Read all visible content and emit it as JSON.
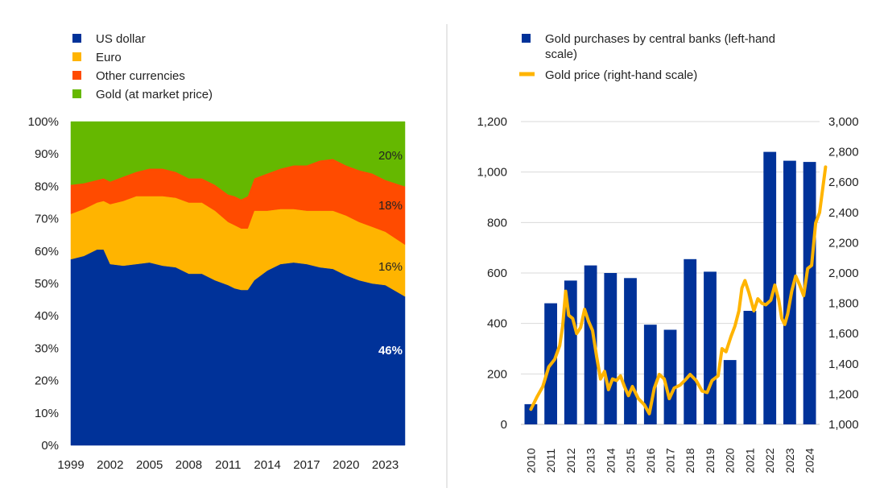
{
  "chart_data": [
    {
      "type": "area",
      "stacked": true,
      "legend_position": "top-left",
      "grid": false,
      "ylim": [
        0,
        100
      ],
      "y_unit": "%",
      "y_ticks": [
        "0%",
        "10%",
        "20%",
        "30%",
        "40%",
        "50%",
        "60%",
        "70%",
        "80%",
        "90%",
        "100%"
      ],
      "x_ticks": [
        "1999",
        "2002",
        "2005",
        "2008",
        "2011",
        "2014",
        "2017",
        "2020",
        "2023"
      ],
      "x": [
        1999.0,
        2000.0,
        2001.0,
        2001.5,
        2002.0,
        2003.0,
        2004.0,
        2005.0,
        2006.0,
        2007.0,
        2008.0,
        2009.0,
        2010.0,
        2011.0,
        2011.5,
        2012.0,
        2012.5,
        2013.0,
        2014.0,
        2015.0,
        2016.0,
        2017.0,
        2018.0,
        2019.0,
        2020.0,
        2021.0,
        2022.0,
        2023.0,
        2024.5
      ],
      "series": [
        {
          "name": "US dollar",
          "color": "#003299",
          "values": [
            57.5,
            58.5,
            60.5,
            60.5,
            56,
            55.5,
            56,
            56.5,
            55.5,
            55,
            53,
            53,
            51,
            49.5,
            48.5,
            48,
            48,
            51,
            54,
            56,
            56.5,
            56,
            55,
            54.5,
            52.5,
            51,
            50,
            49.5,
            46
          ]
        },
        {
          "name": "Euro",
          "color": "#FFB400",
          "values": [
            14,
            14.5,
            14.5,
            15,
            18.5,
            20,
            21,
            20.5,
            21.5,
            21.5,
            22,
            22,
            21.5,
            19.5,
            19.5,
            19,
            19,
            21.5,
            18.5,
            17,
            16.5,
            16.5,
            17.5,
            18,
            18.5,
            18,
            17.5,
            16.5,
            16
          ]
        },
        {
          "name": "Other currencies",
          "color": "#FF4B00",
          "values": [
            9,
            8,
            7,
            7,
            7,
            7.5,
            7.5,
            8.5,
            8.5,
            8,
            7.5,
            7.5,
            8,
            8.5,
            9,
            9,
            10,
            10,
            11.5,
            12.5,
            13.5,
            14,
            15.5,
            16,
            15.5,
            16,
            16.5,
            16,
            18
          ]
        },
        {
          "name": "Gold (at market price)",
          "color": "#65B800",
          "values": [
            19.5,
            19,
            18,
            17.5,
            18.5,
            17,
            15.5,
            14.5,
            14.5,
            15.5,
            17.5,
            17.5,
            19.5,
            22.5,
            23,
            24,
            23,
            17.5,
            16,
            14.5,
            13.5,
            13.5,
            12,
            11.5,
            13.5,
            15,
            16,
            18,
            20
          ]
        }
      ],
      "data_labels": [
        "46%",
        "16%",
        "18%",
        "20%"
      ]
    },
    {
      "type": "bar+line",
      "legend_position": "top",
      "grid": true,
      "categories": [
        "2010",
        "2011",
        "2012",
        "2013",
        "2014",
        "2015",
        "2016",
        "2017",
        "2018",
        "2019",
        "2020",
        "2021",
        "2022",
        "2023",
        "2024"
      ],
      "left_axis": {
        "ylim": [
          0,
          1200
        ],
        "ticks": [
          "0",
          "200",
          "400",
          "600",
          "800",
          "1,000",
          "1,200"
        ]
      },
      "right_axis": {
        "ylim": [
          1000,
          3000
        ],
        "ticks": [
          "1,000",
          "1,200",
          "1,400",
          "1,600",
          "1,800",
          "2,000",
          "2,200",
          "2,400",
          "2,600",
          "2,800",
          "3,000"
        ]
      },
      "series": [
        {
          "name": "Gold purchases by central banks (left-hand scale)",
          "type": "bar",
          "axis": "left",
          "color": "#003299",
          "values": [
            80,
            480,
            570,
            630,
            600,
            580,
            395,
            375,
            655,
            605,
            255,
            450,
            1080,
            1045,
            1040
          ]
        },
        {
          "name": "Gold price (right-hand scale)",
          "type": "line",
          "axis": "right",
          "color": "#FFB400",
          "x": [
            2010.0,
            2010.3,
            2010.6,
            2010.9,
            2011.2,
            2011.45,
            2011.6,
            2011.75,
            2011.9,
            2012.1,
            2012.3,
            2012.5,
            2012.7,
            2012.9,
            2013.1,
            2013.3,
            2013.5,
            2013.7,
            2013.9,
            2014.1,
            2014.3,
            2014.5,
            2014.7,
            2014.9,
            2015.1,
            2015.4,
            2015.7,
            2015.95,
            2016.2,
            2016.45,
            2016.7,
            2016.95,
            2017.2,
            2017.5,
            2017.8,
            2018.0,
            2018.3,
            2018.6,
            2018.85,
            2019.1,
            2019.4,
            2019.6,
            2019.8,
            2020.05,
            2020.25,
            2020.45,
            2020.6,
            2020.75,
            2020.95,
            2021.2,
            2021.4,
            2021.6,
            2021.8,
            2022.05,
            2022.25,
            2022.45,
            2022.6,
            2022.75,
            2022.9,
            2023.1,
            2023.3,
            2023.5,
            2023.7,
            2023.9,
            2024.1,
            2024.3,
            2024.5,
            2024.65,
            2024.8
          ],
          "values": [
            1100,
            1180,
            1250,
            1380,
            1430,
            1520,
            1650,
            1880,
            1720,
            1700,
            1600,
            1640,
            1760,
            1680,
            1620,
            1450,
            1300,
            1350,
            1230,
            1300,
            1290,
            1320,
            1250,
            1190,
            1250,
            1170,
            1130,
            1070,
            1240,
            1330,
            1300,
            1170,
            1240,
            1260,
            1300,
            1330,
            1290,
            1220,
            1210,
            1290,
            1320,
            1500,
            1480,
            1580,
            1650,
            1750,
            1900,
            1950,
            1870,
            1750,
            1830,
            1800,
            1790,
            1820,
            1920,
            1820,
            1700,
            1660,
            1730,
            1880,
            1980,
            1920,
            1850,
            2030,
            2050,
            2330,
            2400,
            2550,
            2700
          ]
        }
      ]
    }
  ]
}
